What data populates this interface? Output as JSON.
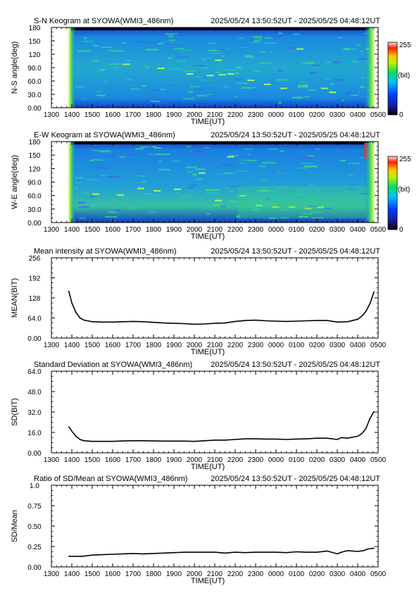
{
  "time_axis": {
    "ticks": [
      "1300",
      "1400",
      "1500",
      "1600",
      "1700",
      "1800",
      "1900",
      "2000",
      "2100",
      "2200",
      "2300",
      "0000",
      "0100",
      "0200",
      "0300",
      "0400",
      "0500"
    ],
    "xlabel": "TIME(UT)",
    "range_hours": [
      13,
      29
    ],
    "data_start_hour": 13.848,
    "data_end_hour": 28.803
  },
  "colorbar": {
    "min": "0",
    "max": "255",
    "unit": "(bit)"
  },
  "panels": [
    {
      "id": "sn",
      "title": "S-N Keogram at SYOWA(WMI3_486nm)",
      "timerange": "2025/05/24 13:50:52UT - 2025/05/25 04:48:12UT",
      "ylabel": "N-S angle(deg)",
      "yticks": [
        "0.00",
        "30.0",
        "60.0",
        "90.0",
        "120",
        "150",
        "180"
      ]
    },
    {
      "id": "ew",
      "title": "E-W Keogram at SYOWA(WMI3_486nm)",
      "timerange": "2025/05/24 13:50:52UT - 2025/05/25 04:48:12UT",
      "ylabel": "W-E angle(deg)",
      "yticks": [
        "0.00",
        "30.0",
        "60.0",
        "90.0",
        "120",
        "150",
        "180"
      ]
    },
    {
      "id": "mean",
      "title": "Mean intensity at SYOWA(WMI3_486nm)",
      "timerange": "2025/05/24 13:50:52UT - 2025/05/25 04:48:12UT",
      "ylabel": "MEAN(BIT)",
      "yticks": [
        "0.00",
        "64.0",
        "128",
        "192",
        "256"
      ]
    },
    {
      "id": "sd",
      "title": "Standard Deviation at SYOWA(WMI3_486nm)",
      "timerange": "2025/05/24 13:50:52UT - 2025/05/25 04:48:12UT",
      "ylabel": "SD(BIT)",
      "yticks": [
        "0.00",
        "16.0",
        "32.0",
        "48.0",
        "64.0"
      ]
    },
    {
      "id": "ratio",
      "title": "Ratio of SD/Mean at SYOWA(WMI3_486nm)",
      "timerange": "2025/05/24 13:50:52UT - 2025/05/25 04:48:12UT",
      "ylabel": "SD/Mean",
      "yticks": [
        "0.00",
        "0.25",
        "0.50",
        "0.75",
        "1.0"
      ]
    }
  ],
  "chart_data": [
    {
      "type": "heatmap",
      "title": "S-N Keogram at SYOWA(WMI3_486nm)",
      "xlabel": "TIME(UT)",
      "ylabel": "N-S angle(deg)",
      "ylim": [
        0,
        180
      ],
      "zlim": [
        0,
        255
      ]
    },
    {
      "type": "heatmap",
      "title": "E-W Keogram at SYOWA(WMI3_486nm)",
      "xlabel": "TIME(UT)",
      "ylabel": "W-E angle(deg)",
      "ylim": [
        0,
        180
      ],
      "zlim": [
        0,
        255
      ]
    },
    {
      "type": "line",
      "title": "Mean intensity at SYOWA(WMI3_486nm)",
      "xlabel": "TIME(UT)",
      "ylabel": "MEAN(BIT)",
      "ylim": [
        0,
        256
      ],
      "x": [
        13.85,
        14.0,
        14.2,
        14.4,
        14.6,
        15.0,
        15.5,
        16.0,
        16.5,
        17.0,
        17.5,
        18.0,
        18.5,
        19.0,
        19.5,
        20.0,
        20.5,
        21.0,
        21.5,
        22.0,
        22.5,
        23.0,
        23.5,
        24.0,
        24.5,
        25.0,
        25.5,
        26.0,
        26.5,
        27.0,
        27.5,
        28.0,
        28.2,
        28.4,
        28.6,
        28.8
      ],
      "y": [
        150,
        112,
        82,
        64,
        57,
        52,
        51,
        51,
        52,
        53,
        52,
        50,
        48,
        47,
        46,
        44,
        45,
        47,
        48,
        53,
        56,
        57,
        55,
        54,
        53,
        54,
        55,
        56,
        56,
        51,
        52,
        60,
        70,
        85,
        110,
        148
      ]
    },
    {
      "type": "line",
      "title": "Standard Deviation at SYOWA(WMI3_486nm)",
      "xlabel": "TIME(UT)",
      "ylabel": "SD(BIT)",
      "ylim": [
        0,
        64
      ],
      "x": [
        13.85,
        14.0,
        14.2,
        14.4,
        14.6,
        15.0,
        15.5,
        16.0,
        16.5,
        17.0,
        17.5,
        18.0,
        18.5,
        19.0,
        19.5,
        20.0,
        20.5,
        21.0,
        21.5,
        22.0,
        22.5,
        23.0,
        23.5,
        24.0,
        24.5,
        25.0,
        25.5,
        26.0,
        26.5,
        27.0,
        27.2,
        27.5,
        28.0,
        28.2,
        28.4,
        28.6,
        28.8
      ],
      "y": [
        20.5,
        17,
        13,
        10.5,
        9.5,
        9,
        9,
        9,
        9.3,
        9.5,
        9.5,
        9.3,
        9.2,
        9.2,
        9.2,
        9,
        9.5,
        10,
        10,
        10.5,
        11,
        11,
        10.8,
        10.8,
        10.5,
        10.8,
        11,
        11.5,
        11.5,
        10.5,
        12,
        11.5,
        13,
        15,
        19,
        27,
        32.5
      ]
    },
    {
      "type": "line",
      "title": "Ratio of SD/Mean at SYOWA(WMI3_486nm)",
      "xlabel": "TIME(UT)",
      "ylabel": "SD/Mean",
      "ylim": [
        0,
        1.0
      ],
      "x": [
        13.85,
        14.5,
        15.0,
        15.5,
        16.0,
        16.5,
        17.0,
        17.5,
        18.0,
        18.5,
        19.0,
        19.5,
        20.0,
        20.5,
        21.0,
        21.5,
        22.0,
        22.5,
        23.0,
        23.5,
        24.0,
        24.5,
        25.0,
        25.5,
        26.0,
        26.5,
        27.0,
        27.2,
        27.5,
        28.0,
        28.3,
        28.5,
        28.8
      ],
      "y": [
        0.13,
        0.13,
        0.145,
        0.15,
        0.155,
        0.16,
        0.165,
        0.16,
        0.165,
        0.17,
        0.175,
        0.18,
        0.18,
        0.18,
        0.18,
        0.17,
        0.18,
        0.175,
        0.18,
        0.18,
        0.18,
        0.175,
        0.185,
        0.18,
        0.18,
        0.195,
        0.16,
        0.18,
        0.2,
        0.19,
        0.2,
        0.22,
        0.23
      ]
    }
  ]
}
